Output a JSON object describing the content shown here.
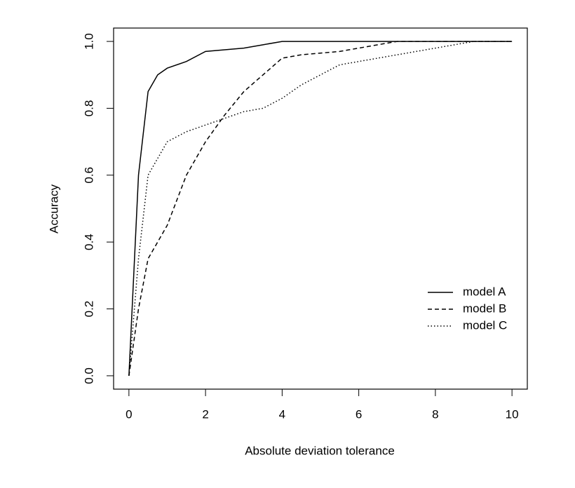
{
  "chart_data": {
    "type": "line",
    "x_label": "Absolute deviation tolerance",
    "y_label": "Accuracy",
    "xlim": [
      -0.4,
      10.4
    ],
    "xticks": [
      0,
      2,
      4,
      6,
      8,
      10
    ],
    "ylim": [
      -0.04,
      1.04
    ],
    "yticks": [
      {
        "value": 0,
        "label": "0.0"
      },
      0.2,
      0.4,
      0.6,
      0.8,
      {
        "value": 1,
        "label": "1.0"
      }
    ],
    "legend": "bottomright",
    "series": [
      {
        "name": "model A",
        "color": "#000000",
        "linestyle": "solid",
        "x": [
          0,
          0.25,
          0.5,
          0.75,
          1,
          1.5,
          2,
          3,
          3.5,
          4,
          5,
          6,
          7,
          8,
          9,
          10
        ],
        "values": [
          0,
          0.6,
          0.85,
          0.9,
          0.92,
          0.94,
          0.97,
          0.98,
          0.99,
          1.0,
          1.0,
          1.0,
          1.0,
          1.0,
          1.0,
          1.0
        ]
      },
      {
        "name": "model B",
        "color": "#000000",
        "linestyle": "dashed",
        "x": [
          0,
          0.25,
          0.5,
          0.75,
          1,
          1.5,
          2,
          2.5,
          3,
          3.5,
          4,
          4.5,
          5,
          5.5,
          6,
          7,
          8,
          9,
          10
        ],
        "values": [
          0,
          0.2,
          0.35,
          0.4,
          0.45,
          0.6,
          0.7,
          0.78,
          0.85,
          0.9,
          0.95,
          0.96,
          0.965,
          0.97,
          0.98,
          1.0,
          1.0,
          1.0,
          1.0
        ]
      },
      {
        "name": "model C",
        "color": "#000000",
        "linestyle": "dotted",
        "x": [
          0,
          0.25,
          0.5,
          0.75,
          1,
          1.5,
          2,
          2.5,
          3,
          3.5,
          4,
          4.5,
          5,
          5.5,
          6,
          7,
          8,
          9,
          10
        ],
        "values": [
          0,
          0.35,
          0.6,
          0.65,
          0.7,
          0.73,
          0.75,
          0.77,
          0.79,
          0.8,
          0.83,
          0.87,
          0.9,
          0.93,
          0.94,
          0.96,
          0.98,
          1.0,
          1.0
        ]
      }
    ]
  }
}
